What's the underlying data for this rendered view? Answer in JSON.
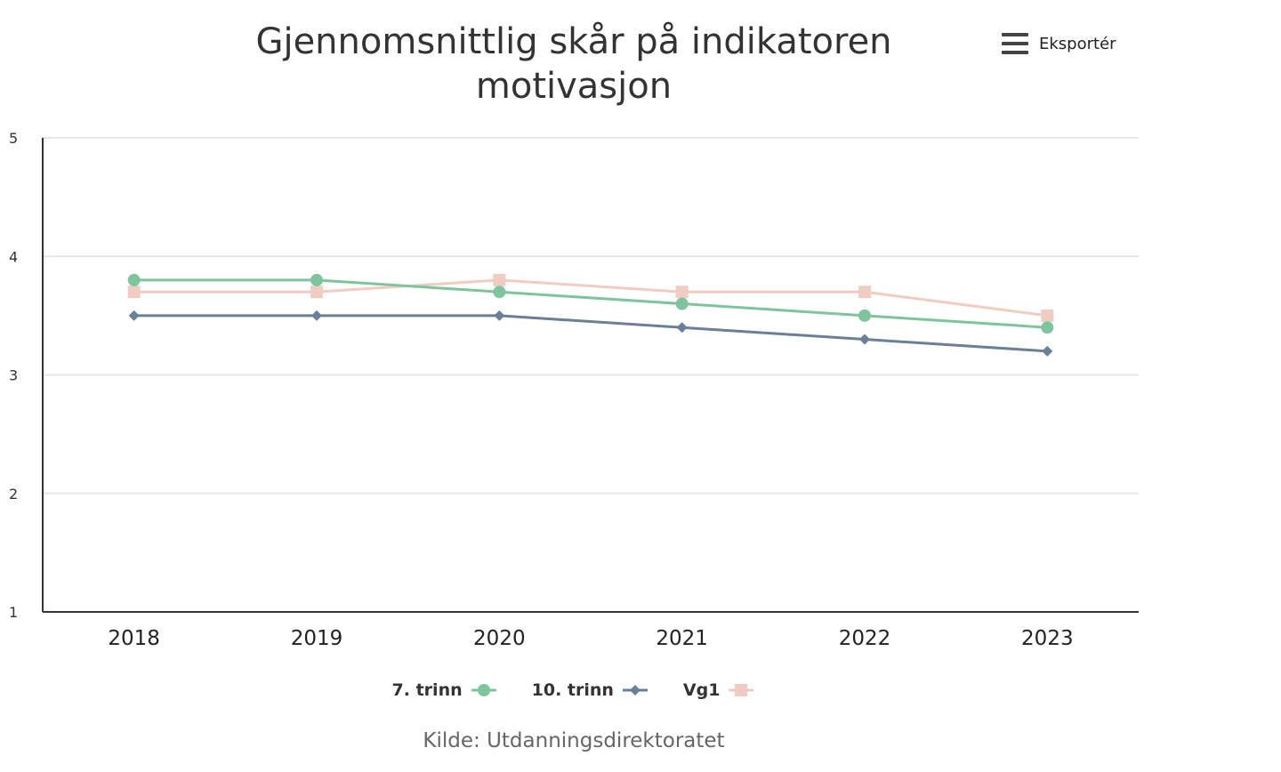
{
  "header": {
    "title": "Gjennomsnittlig skår på indikatoren motivasjon",
    "export_label": "Eksportér"
  },
  "footer": {
    "credit": "Kilde: Utdanningsdirektoratet"
  },
  "chart_data": {
    "type": "line",
    "title": "Gjennomsnittlig skår på indikatoren motivasjon",
    "xlabel": "",
    "ylabel": "",
    "categories": [
      "2018",
      "2019",
      "2020",
      "2021",
      "2022",
      "2023"
    ],
    "ylim": [
      1,
      5
    ],
    "yticks": [
      "1",
      "2",
      "3",
      "4",
      "5"
    ],
    "grid": true,
    "legend_position": "bottom-center",
    "series": [
      {
        "name": "7. trinn",
        "values": [
          3.8,
          3.8,
          3.7,
          3.6,
          3.5,
          3.4
        ],
        "color": "#7ec49d",
        "marker": "circle"
      },
      {
        "name": "10. trinn",
        "values": [
          3.5,
          3.5,
          3.5,
          3.4,
          3.3,
          3.2
        ],
        "color": "#6a7f98",
        "marker": "diamond"
      },
      {
        "name": "Vg1",
        "values": [
          3.7,
          3.7,
          3.8,
          3.7,
          3.7,
          3.5
        ],
        "color": "#f0cdc0",
        "marker": "square"
      }
    ]
  }
}
